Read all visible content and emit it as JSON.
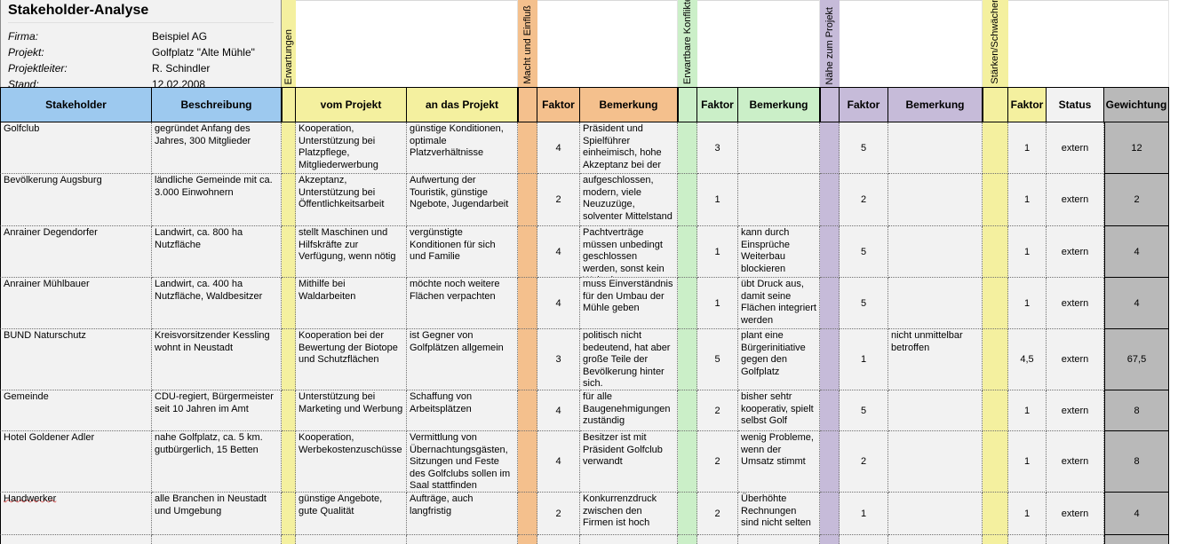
{
  "app": {
    "title": "Stakeholder-Analyse"
  },
  "info": {
    "fields": [
      {
        "label": "Firma:",
        "value": "Beispiel AG"
      },
      {
        "label": "Projekt:",
        "value": "Golfplatz \"Alte Mühle\""
      },
      {
        "label": "Projektleiter:",
        "value": "R. Schindler"
      },
      {
        "label": "Stand:",
        "value": "12.02.2008"
      }
    ]
  },
  "strips": [
    {
      "label": "Erwartungen",
      "color": "#F4F09F"
    },
    {
      "label": "Macht und Einfluß",
      "color": "#F4C08D"
    },
    {
      "label": "Erwartbare Konflikte",
      "color": "#CBEFC8"
    },
    {
      "label": "Nähe zum Projekt",
      "color": "#C6BBD9"
    },
    {
      "label": "Stärken/Schwächen-Profil",
      "color": "#F4F09F"
    }
  ],
  "colors": {
    "header_blue": "#9DC9EF",
    "yellow": "#F4F09F",
    "orange": "#F4C08D",
    "green": "#CBEFC8",
    "purple": "#C6BBD9",
    "gray": "#B9B9B9",
    "cell_bg": "#F2F2F2"
  },
  "header": {
    "stakeholder": "Stakeholder",
    "beschreibung": "Beschreibung",
    "vom_projekt": "vom Projekt",
    "an_das_projekt": "an das Projekt",
    "faktor": "Faktor",
    "bemerkung": "Bemerkung",
    "status": "Status",
    "gewichtung": "Gewichtung"
  },
  "rows": [
    {
      "stakeholder": "Golfclub",
      "beschreibung": "gegründet Anfang des Jahres, 300 Mitglieder",
      "vom_projekt": "Kooperation, Unterstützung bei Platzpflege, Mitgliederwerbung",
      "an_das_projekt": "günstige Konditionen, optimale Platzverhältnisse",
      "macht_faktor": "4",
      "macht_bemerkung": "Präsident und Spielführer einheimisch, hohe Akzeptanz bei der",
      "konflikte_faktor": "3",
      "konflikte_bemerkung": "",
      "naehe_faktor": "5",
      "naehe_bemerkung": "",
      "staerken_faktor": "1",
      "status": "extern",
      "gewichtung": "12"
    },
    {
      "stakeholder": "Bevölkerung Augsburg",
      "beschreibung": "ländliche Gemeinde mit ca. 3.000 Einwohnern",
      "vom_projekt": "Akzeptanz, Unterstützung bei Öffentlichkeitsarbeit",
      "an_das_projekt": "Aufwertung der Touristik, günstige Ngebote, Jugendarbeit",
      "macht_faktor": "2",
      "macht_bemerkung": "aufgeschlossen, modern, viele Neuzuzüge, solventer Mittelstand",
      "konflikte_faktor": "1",
      "konflikte_bemerkung": "",
      "naehe_faktor": "2",
      "naehe_bemerkung": "",
      "staerken_faktor": "1",
      "status": "extern",
      "gewichtung": "2"
    },
    {
      "stakeholder": "Anrainer Degendorfer",
      "beschreibung": "Landwirt, ca. 800 ha Nutzfläche",
      "vom_projekt": "stellt Maschinen und Hilfskräfte zur Verfügung, wenn nötig",
      "an_das_projekt": "vergünstigte Konditionen für sich und Familie",
      "macht_faktor": "4",
      "macht_bemerkung": "Pachtverträge müssen unbedingt geschlossen werden, sonst kein Weiterbau",
      "konflikte_faktor": "1",
      "konflikte_bemerkung": "kann durch Einsprüche Weiterbau blockieren",
      "naehe_faktor": "5",
      "naehe_bemerkung": "",
      "staerken_faktor": "1",
      "status": "extern",
      "gewichtung": "4"
    },
    {
      "stakeholder": "Anrainer Mühlbauer",
      "beschreibung": "Landwirt, ca. 400 ha Nutzfläche, Waldbesitzer",
      "vom_projekt": "Mithilfe bei Waldarbeiten",
      "an_das_projekt": "möchte noch weitere Flächen verpachten",
      "macht_faktor": "4",
      "macht_bemerkung": "muss Einverständnis für den Umbau der Mühle geben",
      "konflikte_faktor": "1",
      "konflikte_bemerkung": "übt Druck aus, damit seine Flächen integriert werden",
      "naehe_faktor": "5",
      "naehe_bemerkung": "",
      "staerken_faktor": "1",
      "status": "extern",
      "gewichtung": "4"
    },
    {
      "stakeholder": "BUND Naturschutz",
      "beschreibung": "Kreisvorsitzender Kessling wohnt in Neustadt",
      "vom_projekt": "Kooperation bei der Bewertung der Biotope und Schutzflächen",
      "an_das_projekt": "ist Gegner von Golfplätzen allgemein",
      "macht_faktor": "3",
      "macht_bemerkung": "politisch nicht bedeutend, hat aber große Teile der Bevölkerung hinter sich.",
      "konflikte_faktor": "5",
      "konflikte_bemerkung": "plant eine Bürgerinitiative gegen den Golfplatz",
      "naehe_faktor": "1",
      "naehe_bemerkung": "nicht unmittelbar betroffen",
      "staerken_faktor": "4,5",
      "status": "extern",
      "gewichtung": "67,5"
    },
    {
      "stakeholder": "Gemeinde",
      "beschreibung": "CDU-regiert, Bürgermeister seit 10 Jahren im Amt",
      "vom_projekt": "Unterstützung bei Marketing und Werbung",
      "an_das_projekt": "Schaffung von Arbeitsplätzen",
      "macht_faktor": "4",
      "macht_bemerkung": "für alle Baugenehmigungen zuständig",
      "konflikte_faktor": "2",
      "konflikte_bemerkung": "bisher sehtr kooperativ, spielt selbst Golf",
      "naehe_faktor": "5",
      "naehe_bemerkung": "",
      "staerken_faktor": "1",
      "status": "extern",
      "gewichtung": "8"
    },
    {
      "stakeholder": "Hotel Goldener Adler",
      "beschreibung": "nahe Golfplatz, ca. 5 km. gutbürgerlich, 15 Betten",
      "vom_projekt": "Kooperation, Werbekostenzuschüsse",
      "an_das_projekt": "Vermittlung von Übernachtungsgästen, Sitzungen und Feste des Golfclubs sollen im Saal stattfinden",
      "macht_faktor": "4",
      "macht_bemerkung": "Besitzer ist mit Präsident Golfclub verwandt",
      "konflikte_faktor": "2",
      "konflikte_bemerkung": "wenig Probleme, wenn der Umsatz stimmt",
      "naehe_faktor": "2",
      "naehe_bemerkung": "",
      "staerken_faktor": "1",
      "status": "extern",
      "gewichtung": "8"
    },
    {
      "stakeholder": "Handwerker",
      "beschreibung": "alle Branchen in Neustadt und Umgebung",
      "vom_projekt": "günstige Angebote, gute Qualität",
      "an_das_projekt": "Aufträge, auch langfristig",
      "macht_faktor": "2",
      "macht_bemerkung": "Konkurrenzdruck zwischen den Firmen ist hoch",
      "konflikte_faktor": "2",
      "konflikte_bemerkung": "Überhöhte Rechnungen sind nicht selten",
      "naehe_faktor": "1",
      "naehe_bemerkung": "",
      "staerken_faktor": "1",
      "status": "extern",
      "gewichtung": "4"
    }
  ]
}
